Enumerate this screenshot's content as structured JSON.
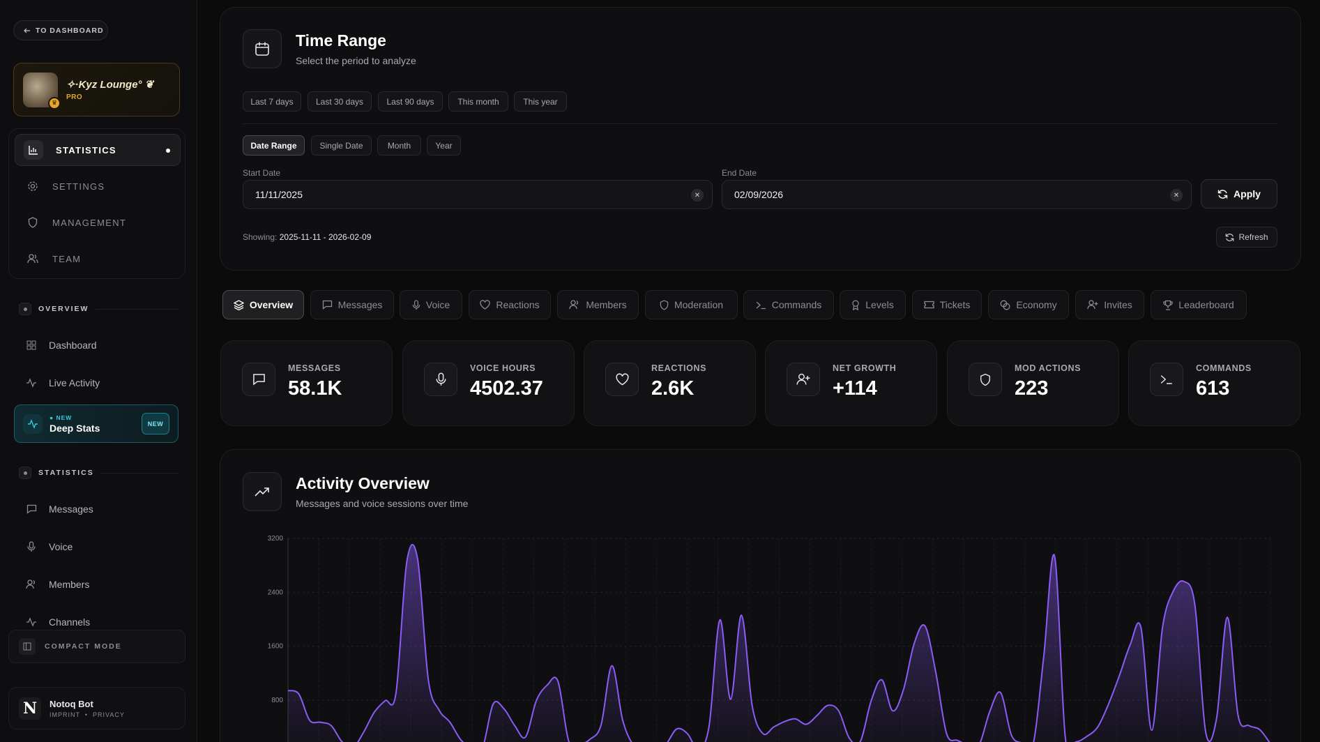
{
  "sidebar": {
    "back_label": "TO DASHBOARD",
    "server": {
      "name": "✧·Kyz Lounge° ❦",
      "tier": "PRO"
    },
    "nav": [
      {
        "label": "STATISTICS",
        "icon": "bar-chart-icon",
        "active": true
      },
      {
        "label": "SETTINGS",
        "icon": "gear-icon"
      },
      {
        "label": "MANAGEMENT",
        "icon": "shield-icon"
      },
      {
        "label": "TEAM",
        "icon": "users-icon"
      }
    ],
    "overview_section": "OVERVIEW",
    "overview_links": [
      {
        "label": "Dashboard",
        "icon": "grid-icon"
      },
      {
        "label": "Live Activity",
        "icon": "activity-icon"
      }
    ],
    "deep_stats": {
      "tag": "NEW",
      "title": "Deep Stats",
      "badge": "NEW"
    },
    "statistics_section": "STATISTICS",
    "statistics_links": [
      {
        "label": "Messages",
        "icon": "message-icon"
      },
      {
        "label": "Voice",
        "icon": "mic-icon"
      },
      {
        "label": "Members",
        "icon": "users-icon"
      },
      {
        "label": "Channels",
        "icon": "activity-icon"
      }
    ],
    "compact_mode": "COMPACT MODE",
    "bot": {
      "logo": "N",
      "name": "Notoq Bot",
      "imprint": "IMPRINT",
      "privacy": "PRIVACY"
    }
  },
  "time_range": {
    "title": "Time Range",
    "subtitle": "Select the period to analyze",
    "presets": [
      "Last 7 days",
      "Last 30 days",
      "Last 90 days",
      "This month",
      "This year"
    ],
    "modes": [
      "Date Range",
      "Single Date",
      "Month",
      "Year"
    ],
    "selected_mode": "Date Range",
    "start_label": "Start Date",
    "start_value": "11/11/2025",
    "end_label": "End Date",
    "end_value": "02/09/2026",
    "apply_label": "Apply",
    "showing_label": "Showing:",
    "showing_value": "2025-11-11 - 2026-02-09",
    "refresh_label": "Refresh"
  },
  "tabs": [
    {
      "label": "Overview",
      "icon": "layers-icon",
      "selected": true
    },
    {
      "label": "Messages",
      "icon": "message-icon"
    },
    {
      "label": "Voice",
      "icon": "mic-icon"
    },
    {
      "label": "Reactions",
      "icon": "heart-icon"
    },
    {
      "label": "Members",
      "icon": "users-icon"
    },
    {
      "label": "Moderation",
      "icon": "shield-icon"
    },
    {
      "label": "Commands",
      "icon": "terminal-icon"
    },
    {
      "label": "Levels",
      "icon": "award-icon"
    },
    {
      "label": "Tickets",
      "icon": "ticket-icon"
    },
    {
      "label": "Economy",
      "icon": "coins-icon"
    },
    {
      "label": "Invites",
      "icon": "user-plus-icon"
    },
    {
      "label": "Leaderboard",
      "icon": "trophy-icon"
    }
  ],
  "stats": [
    {
      "label": "MESSAGES",
      "value": "58.1K",
      "icon": "message-icon"
    },
    {
      "label": "VOICE HOURS",
      "value": "4502.37",
      "icon": "mic-icon"
    },
    {
      "label": "REACTIONS",
      "value": "2.6K",
      "icon": "heart-icon"
    },
    {
      "label": "NET GROWTH",
      "value": "+114",
      "icon": "user-plus-icon"
    },
    {
      "label": "MOD ACTIONS",
      "value": "223",
      "icon": "shield-icon"
    },
    {
      "label": "COMMANDS",
      "value": "613",
      "icon": "terminal-icon"
    }
  ],
  "activity": {
    "title": "Activity Overview",
    "subtitle": "Messages and voice sessions over time"
  },
  "colors": {
    "accent": "#8b5cf6",
    "deep_accent": "#3ec9d9",
    "pro": "#e4a92e"
  },
  "chart_data": {
    "type": "area",
    "yticks": [
      800,
      1600,
      2400,
      3200
    ],
    "ylim": [
      0,
      3200
    ],
    "grid": true,
    "series": [
      {
        "values": [
          940,
          890,
          500,
          470,
          420,
          180,
          90,
          320,
          620,
          790,
          900,
          2850,
          2900,
          1100,
          650,
          470,
          210,
          90,
          80,
          740,
          670,
          420,
          250,
          790,
          1020,
          1080,
          190,
          140,
          220,
          430,
          1310,
          500,
          130,
          80,
          60,
          140,
          370,
          300,
          70,
          410,
          1990,
          810,
          2060,
          710,
          300,
          400,
          480,
          520,
          440,
          570,
          720,
          640,
          230,
          180,
          780,
          1100,
          640,
          950,
          1640,
          1900,
          1210,
          300,
          200,
          140,
          130,
          630,
          910,
          280,
          160,
          130,
          1450,
          2940,
          240,
          180,
          260,
          400,
          740,
          1160,
          1620,
          1880,
          350,
          1880,
          2420,
          2560,
          2210,
          320,
          520,
          2030,
          570,
          420,
          360,
          150
        ]
      }
    ]
  }
}
